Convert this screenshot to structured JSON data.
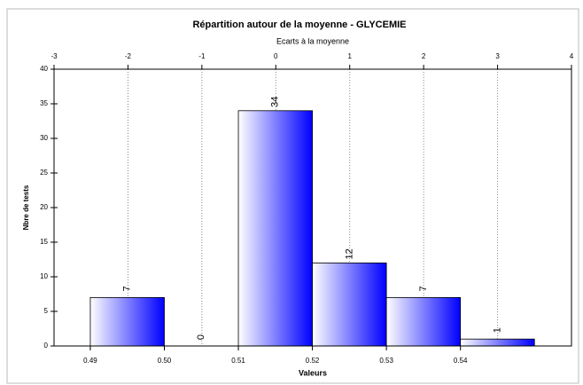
{
  "chart_data": {
    "type": "histogram",
    "title": "Répartition autour de la moyenne  -  GLYCEMIE",
    "x2label": "Ecarts à la moyenne",
    "xlabel": "Valeurs",
    "ylabel": "Nbre de tests",
    "bins": [
      0.49,
      0.5,
      0.51,
      0.52,
      0.53,
      0.54,
      0.55
    ],
    "values": [
      7,
      0,
      34,
      12,
      7,
      1
    ],
    "color": "#0000ff",
    "xlim": [
      0.4851,
      0.555
    ],
    "xticks": [
      0.49,
      {
        "value": 0.5,
        "label": "0.50"
      },
      0.51,
      0.52,
      0.53,
      0.54
    ],
    "x2lim": [
      -3,
      4
    ],
    "x2ticks": [
      -3,
      -2,
      -1,
      0,
      1,
      2,
      3,
      4
    ],
    "ylim": [
      0,
      40
    ],
    "yticks": [
      0,
      5,
      10,
      15,
      20,
      25,
      30,
      35,
      40
    ],
    "grid": true
  }
}
